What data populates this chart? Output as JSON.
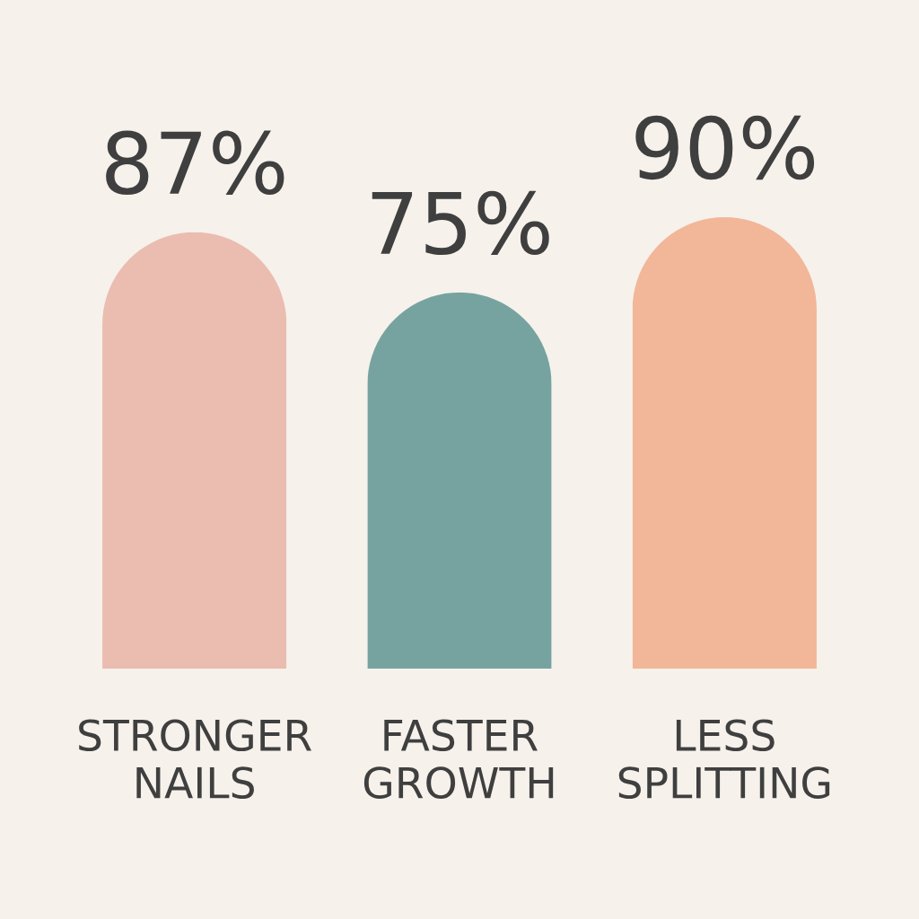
{
  "chart_data": {
    "type": "bar",
    "categories": [
      "STRONGER\nNAILS",
      "FASTER\nGROWTH",
      "LESS\nSPLITTING"
    ],
    "values": [
      87,
      75,
      90
    ],
    "colors": [
      "#ebbcb0",
      "#76a3a0",
      "#f2b699"
    ],
    "value_labels": [
      "87%",
      "75%",
      "90%"
    ],
    "tick_labels": "x"
  }
}
